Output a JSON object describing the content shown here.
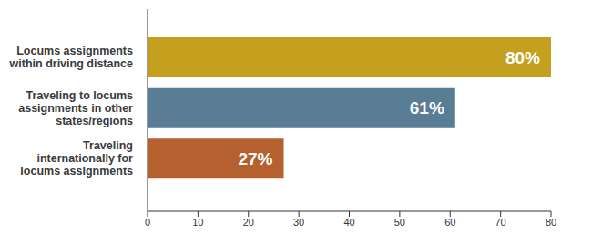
{
  "chart_data": {
    "type": "bar",
    "orientation": "horizontal",
    "categories": [
      "Locums assignments within driving distance",
      "Traveling to locums assignments in other states/regions",
      "Traveling internationally for locums assignments"
    ],
    "values": [
      80,
      61,
      27
    ],
    "value_labels": [
      "80%",
      "61%",
      "27%"
    ],
    "colors": [
      "#c4a01e",
      "#5a7d96",
      "#b5602e"
    ],
    "xlim": [
      0,
      80
    ],
    "xticks": [
      0,
      10,
      20,
      30,
      40,
      50,
      60,
      70,
      80
    ],
    "data_labels": true,
    "grid": false
  }
}
